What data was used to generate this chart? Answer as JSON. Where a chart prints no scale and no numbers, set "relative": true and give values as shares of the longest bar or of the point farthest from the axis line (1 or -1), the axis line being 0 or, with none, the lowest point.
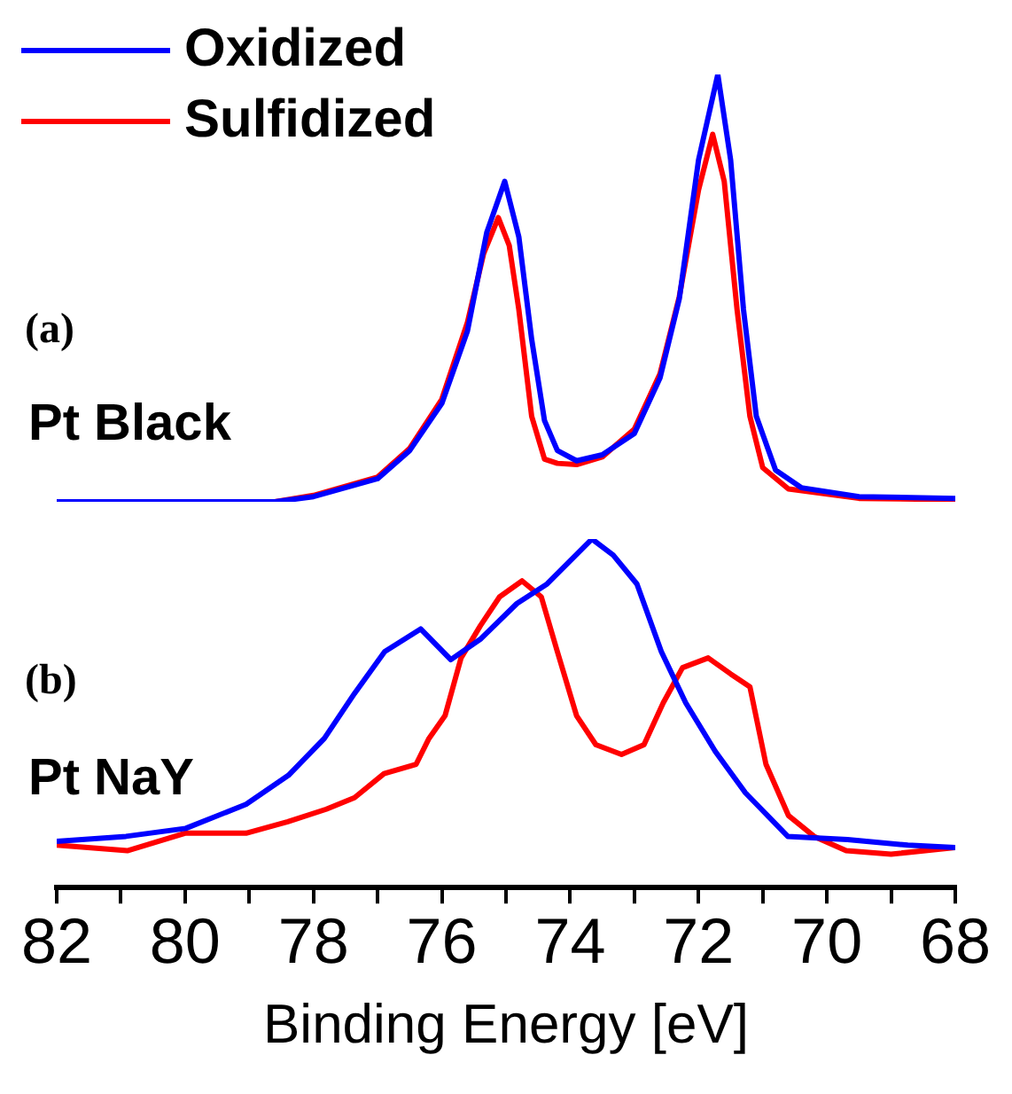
{
  "chart_data": [
    {
      "type": "line",
      "relative": true,
      "legend": "top left",
      "tick_labels": false,
      "xlim": [
        82,
        68
      ],
      "annotations": [
        "(a)",
        "Pt Black"
      ],
      "series": [
        {
          "name": "Oxidized",
          "color": "#0000ff",
          "x": [
            82,
            78.6,
            78,
            77,
            76.5,
            76,
            75.6,
            75.3,
            75.02,
            74.8,
            74.6,
            74.4,
            74.2,
            73.9,
            73.5,
            73,
            72.6,
            72.3,
            72,
            71.7,
            71.5,
            71.3,
            71.1,
            70.8,
            70.4,
            69.5,
            68
          ],
          "values": [
            0,
            0,
            0.012,
            0.054,
            0.12,
            0.23,
            0.4,
            0.63,
            0.75,
            0.62,
            0.38,
            0.19,
            0.12,
            0.096,
            0.11,
            0.16,
            0.29,
            0.475,
            0.8,
            1,
            0.8,
            0.45,
            0.2,
            0.074,
            0.033,
            0.012,
            0.008
          ]
        },
        {
          "name": "Sulfidized",
          "color": "#ff0000",
          "x": [
            82,
            78.6,
            78,
            77,
            76.5,
            76,
            75.6,
            75.35,
            75.12,
            74.95,
            74.8,
            74.6,
            74.4,
            74.2,
            73.9,
            73.5,
            73,
            72.6,
            72.3,
            72,
            71.78,
            71.6,
            71.4,
            71.2,
            71,
            70.6,
            69.5,
            68
          ],
          "values": [
            0,
            0,
            0.015,
            0.058,
            0.125,
            0.24,
            0.42,
            0.58,
            0.665,
            0.6,
            0.45,
            0.2,
            0.1,
            0.09,
            0.087,
            0.105,
            0.17,
            0.3,
            0.48,
            0.73,
            0.86,
            0.75,
            0.45,
            0.2,
            0.08,
            0.03,
            0.008,
            0.005
          ]
        }
      ]
    },
    {
      "type": "line",
      "relative": true,
      "tick_labels": "x",
      "xlim": [
        82,
        68
      ],
      "xticks": [
        82,
        {
          "value": 81,
          "label": null
        },
        80,
        {
          "value": 79,
          "label": null
        },
        78,
        {
          "value": 77,
          "label": null
        },
        76,
        {
          "value": 75,
          "label": null
        },
        74,
        {
          "value": 73,
          "label": null
        },
        72,
        {
          "value": 71,
          "label": null
        },
        70,
        {
          "value": 69,
          "label": null
        },
        68
      ],
      "xlabel": "Binding Energy [eV]",
      "annotations": [
        "(b)",
        "Pt NaY"
      ],
      "series": [
        {
          "color": "#0000ff",
          "x": [
            82,
            80.92,
            79.99,
            79.05,
            78.39,
            77.83,
            77.36,
            76.89,
            76.33,
            75.86,
            75.39,
            74.83,
            74.36,
            73.66,
            73.33,
            72.96,
            72.58,
            72.2,
            71.74,
            71.27,
            70.61,
            69.68,
            68.74,
            68
          ],
          "values": [
            0.133,
            0.147,
            0.17,
            0.239,
            0.322,
            0.428,
            0.557,
            0.677,
            0.742,
            0.654,
            0.714,
            0.815,
            0.871,
            1,
            0.954,
            0.871,
            0.677,
            0.53,
            0.391,
            0.272,
            0.147,
            0.138,
            0.122,
            0.115
          ]
        },
        {
          "color": "#ff0000",
          "x": [
            82,
            80.9,
            80,
            79.05,
            78.4,
            77.8,
            77.36,
            76.9,
            76.4,
            76.2,
            75.95,
            75.7,
            75.4,
            75.1,
            74.75,
            74.45,
            74.2,
            73.9,
            73.6,
            73.2,
            72.85,
            72.55,
            72.25,
            71.85,
            71.5,
            71.2,
            70.95,
            70.6,
            70.2,
            69.7,
            69,
            68
          ],
          "values": [
            0.122,
            0.106,
            0.156,
            0.156,
            0.189,
            0.225,
            0.258,
            0.327,
            0.354,
            0.428,
            0.493,
            0.659,
            0.751,
            0.834,
            0.88,
            0.834,
            0.677,
            0.493,
            0.41,
            0.382,
            0.41,
            0.53,
            0.631,
            0.659,
            0.613,
            0.576,
            0.354,
            0.207,
            0.147,
            0.106,
            0.096,
            0.115
          ]
        }
      ]
    }
  ]
}
